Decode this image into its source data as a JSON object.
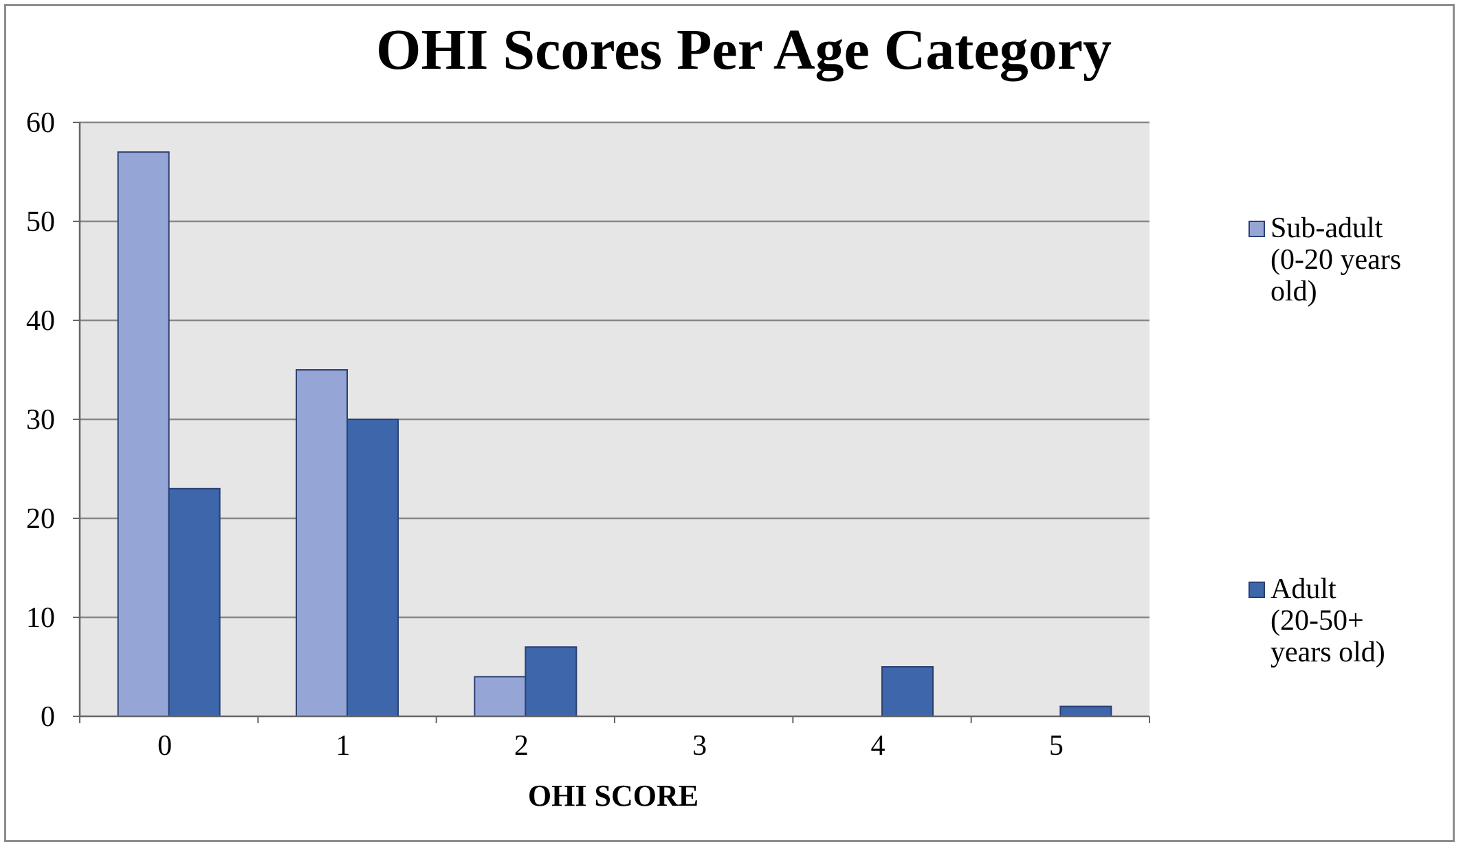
{
  "chart_data": {
    "type": "bar",
    "title": "OHI Scores Per Age Category",
    "xlabel": "OHI SCORE",
    "ylabel": "",
    "categories": [
      "0",
      "1",
      "2",
      "3",
      "4",
      "5"
    ],
    "ylim": [
      0,
      60
    ],
    "yticks": [
      "0",
      "10",
      "20",
      "30",
      "40",
      "50",
      "60"
    ],
    "grid": true,
    "legend_position": "right",
    "plot_background": "#e6e6e6",
    "series": [
      {
        "name_lines": [
          "Sub-adult",
          "(0-20 years",
          "old)"
        ],
        "color": "#95a6d6",
        "values": [
          57,
          35,
          4,
          0,
          0,
          0
        ]
      },
      {
        "name_lines": [
          "Adult",
          "(20-50+",
          "years old)"
        ],
        "color": "#3e66ab",
        "values": [
          23,
          30,
          7,
          0,
          5,
          1
        ]
      }
    ]
  }
}
